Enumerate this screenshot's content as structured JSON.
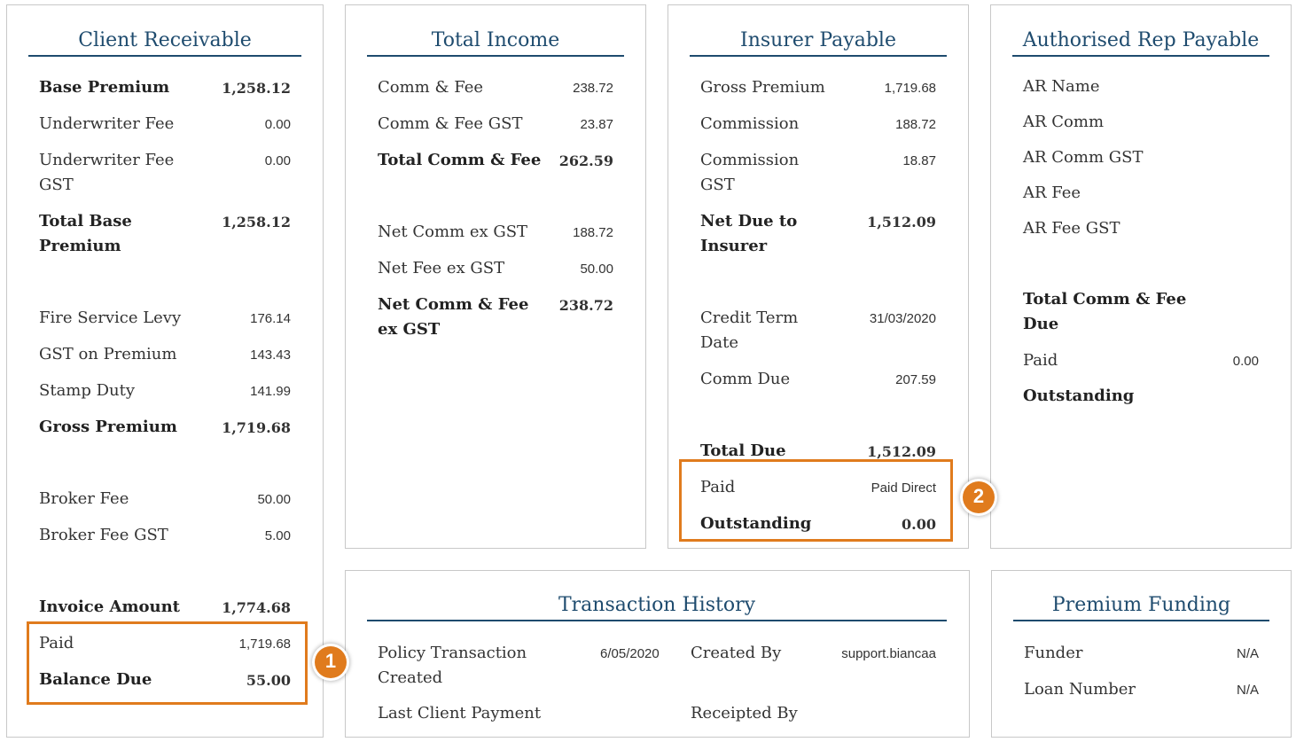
{
  "client_receivable": {
    "title": "Client Receivable",
    "rows": [
      {
        "label": "Base Premium",
        "value": "1,258.12"
      },
      {
        "label": "Underwriter Fee",
        "value": "0.00"
      },
      {
        "label": "Underwriter Fee GST",
        "value": "0.00"
      },
      {
        "label": "Total Base Premium",
        "value": "1,258.12"
      },
      {
        "label": "Fire Service Levy",
        "value": "176.14"
      },
      {
        "label": "GST on Premium",
        "value": "143.43"
      },
      {
        "label": "Stamp Duty",
        "value": "141.99"
      },
      {
        "label": "Gross Premium",
        "value": "1,719.68"
      },
      {
        "label": "Broker Fee",
        "value": "50.00"
      },
      {
        "label": "Broker Fee GST",
        "value": "5.00"
      },
      {
        "label": "Invoice Amount",
        "value": "1,774.68"
      },
      {
        "label": "Paid",
        "value": "1,719.68"
      },
      {
        "label": "Balance Due",
        "value": "55.00"
      }
    ]
  },
  "total_income": {
    "title": "Total Income",
    "rows": [
      {
        "label": "Comm & Fee",
        "value": "238.72"
      },
      {
        "label": "Comm & Fee GST",
        "value": "23.87"
      },
      {
        "label": "Total Comm & Fee",
        "value": "262.59"
      },
      {
        "label": "Net Comm ex GST",
        "value": "188.72"
      },
      {
        "label": "Net Fee ex GST",
        "value": "50.00"
      },
      {
        "label": "Net Comm & Fee ex GST",
        "value": "238.72"
      }
    ]
  },
  "insurer_payable": {
    "title": "Insurer Payable",
    "rows": [
      {
        "label": "Gross Premium",
        "value": "1,719.68"
      },
      {
        "label": "Commission",
        "value": "188.72"
      },
      {
        "label": "Commission GST",
        "value": "18.87"
      },
      {
        "label": "Net Due to Insurer",
        "value": "1,512.09"
      },
      {
        "label": "Credit Term Date",
        "value": "31/03/2020"
      },
      {
        "label": "Comm Due",
        "value": "207.59"
      },
      {
        "label": "Total Due",
        "value": "1,512.09"
      },
      {
        "label": "Paid",
        "value": "Paid Direct"
      },
      {
        "label": "Outstanding",
        "value": "0.00"
      }
    ]
  },
  "ar_payable": {
    "title": "Authorised Rep Payable",
    "rows": [
      {
        "label": "AR Name",
        "value": ""
      },
      {
        "label": "AR Comm",
        "value": ""
      },
      {
        "label": "AR Comm GST",
        "value": ""
      },
      {
        "label": "AR Fee",
        "value": ""
      },
      {
        "label": "AR Fee GST",
        "value": ""
      },
      {
        "label": "Total Comm & Fee Due",
        "value": ""
      },
      {
        "label": "Paid",
        "value": "0.00"
      },
      {
        "label": "Outstanding",
        "value": ""
      }
    ]
  },
  "transaction_history": {
    "title": "Transaction History",
    "policy_transaction_created_label": "Policy Transaction Created",
    "policy_transaction_created_value": "6/05/2020",
    "created_by_label": "Created By",
    "created_by_value": "support.biancaa",
    "last_client_payment_label": "Last Client Payment",
    "receipted_by_label": "Receipted By"
  },
  "premium_funding": {
    "title": "Premium Funding",
    "funder_label": "Funder",
    "funder_value": "N/A",
    "loan_number_label": "Loan Number",
    "loan_number_value": "N/A"
  },
  "badges": {
    "one": "1",
    "two": "2"
  },
  "colors": {
    "title": "#1e4b6e",
    "highlight": "#e07b1d",
    "border": "#c8c8c8"
  }
}
